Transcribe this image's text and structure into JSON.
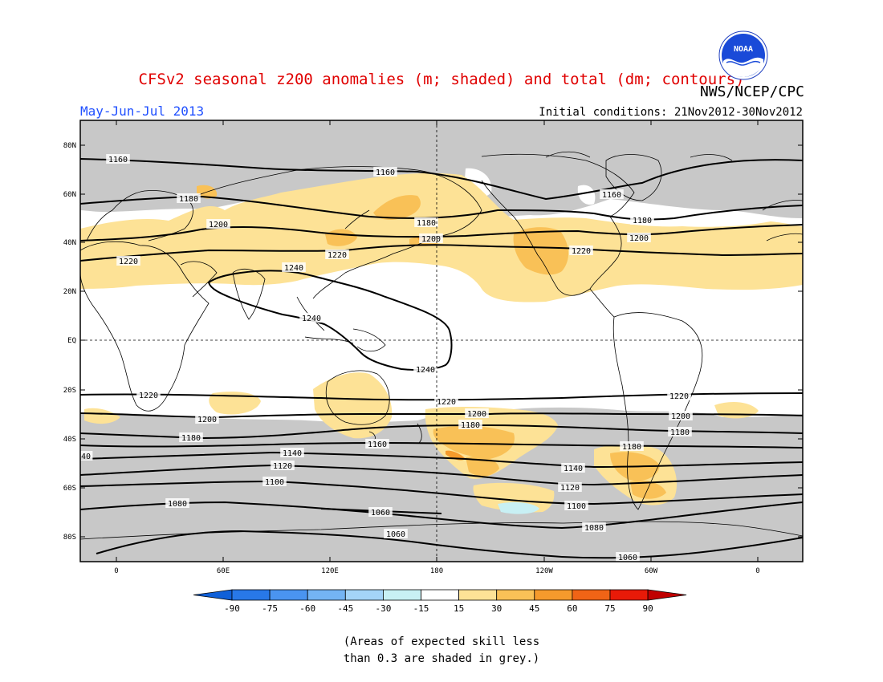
{
  "header": {
    "title": "CFSv2 seasonal z200 anomalies (m; shaded) and total (dm; contours)",
    "agency": "NWS/NCEP/CPC",
    "logo_text": "NOAA",
    "season": "May-Jun-Jul 2013",
    "initial_conditions": "Initial conditions: 21Nov2012-30Nov2012"
  },
  "map": {
    "lat_ticks": [
      "80N",
      "60N",
      "40N",
      "20N",
      "EQ",
      "20S",
      "40S",
      "60S",
      "80S"
    ],
    "lon_ticks": [
      "0",
      "60E",
      "120E",
      "180",
      "120W",
      "60W",
      "0"
    ],
    "contour_labels": [
      {
        "id": "1160-nh-a",
        "text": "1160"
      },
      {
        "id": "1160-nh-b",
        "text": "1160"
      },
      {
        "id": "1160-nh-c",
        "text": "1160"
      },
      {
        "id": "1180-nh-a",
        "text": "1180"
      },
      {
        "id": "1180-nh-b",
        "text": "1180"
      },
      {
        "id": "1180-nh-c",
        "text": "1180"
      },
      {
        "id": "1200-nh-a",
        "text": "1200"
      },
      {
        "id": "1200-nh-b",
        "text": "1200"
      },
      {
        "id": "1200-nh-c",
        "text": "1200"
      },
      {
        "id": "1220-nh-a",
        "text": "1220"
      },
      {
        "id": "1220-nh-b",
        "text": "1220"
      },
      {
        "id": "1220-nh-c",
        "text": "1220"
      },
      {
        "id": "1240-a",
        "text": "1240"
      },
      {
        "id": "1240-b",
        "text": "1240"
      },
      {
        "id": "1240-c",
        "text": "1240"
      },
      {
        "id": "1220-sh-a",
        "text": "1220"
      },
      {
        "id": "1220-sh-b",
        "text": "1220"
      },
      {
        "id": "1220-sh-c",
        "text": "1220"
      },
      {
        "id": "1200-sh-a",
        "text": "1200"
      },
      {
        "id": "1200-sh-b",
        "text": "1200"
      },
      {
        "id": "1200-sh-c",
        "text": "1200"
      },
      {
        "id": "1180-sh-a",
        "text": "1180"
      },
      {
        "id": "1180-sh-b",
        "text": "1180"
      },
      {
        "id": "1180-sh-c",
        "text": "1180"
      },
      {
        "id": "1180-sh-d",
        "text": "1180"
      },
      {
        "id": "1160-sh",
        "text": "1160"
      },
      {
        "id": "1140-a",
        "text": "1140"
      },
      {
        "id": "1140-b",
        "text": "1140"
      },
      {
        "id": "1140-edge",
        "text": "40"
      },
      {
        "id": "1120-a",
        "text": "1120"
      },
      {
        "id": "1120-b",
        "text": "1120"
      },
      {
        "id": "1100-a",
        "text": "1100"
      },
      {
        "id": "1100-b",
        "text": "1100"
      },
      {
        "id": "1080-a",
        "text": "1080"
      },
      {
        "id": "1080-b",
        "text": "1080"
      },
      {
        "id": "1060-a",
        "text": "1060"
      },
      {
        "id": "1060-b",
        "text": "1060"
      },
      {
        "id": "1060-c",
        "text": "1060"
      }
    ]
  },
  "colorbar": {
    "labels": [
      "-90",
      "-75",
      "-60",
      "-45",
      "-30",
      "-15",
      "15",
      "30",
      "45",
      "60",
      "75",
      "90"
    ],
    "colors": [
      "#1060d8",
      "#2878e8",
      "#4a94f0",
      "#74b4f4",
      "#a4d4f8",
      "#c8f0f4",
      "#ffffff",
      "#fde296",
      "#f9c157",
      "#f59a2c",
      "#f06416",
      "#e81a08",
      "#c00000"
    ]
  },
  "note": {
    "line1": "(Areas of expected skill less",
    "line2": "than 0.3 are shaded in grey.)"
  }
}
